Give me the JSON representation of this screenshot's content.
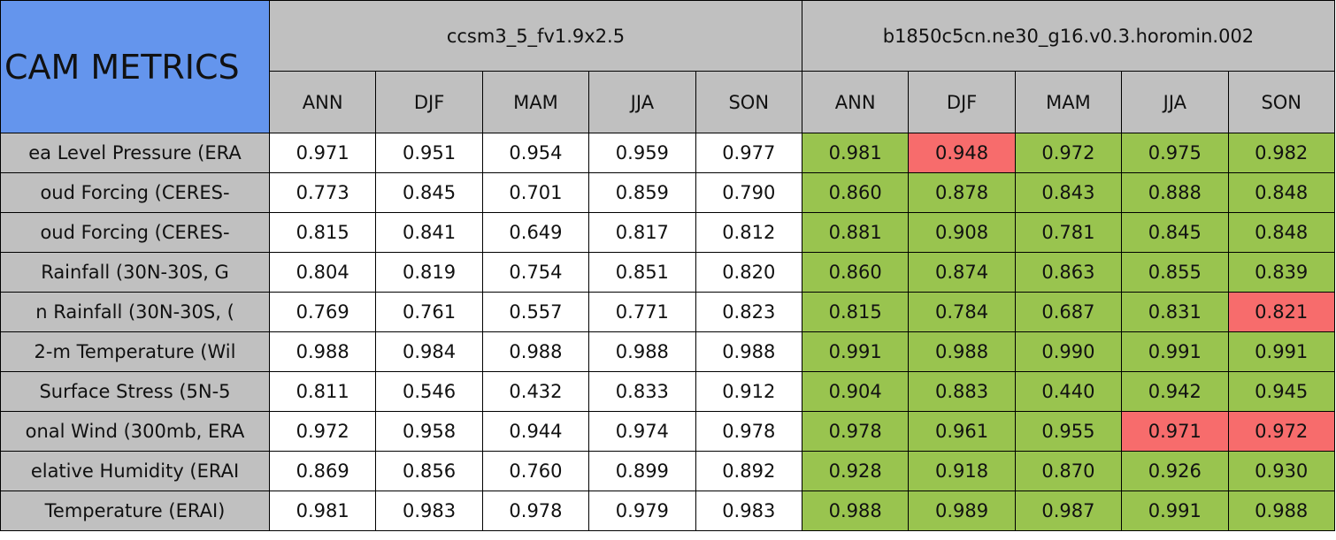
{
  "table": {
    "title": "CAM METRICS",
    "models": [
      {
        "name": "ccsm3_5_fv1.9x2.5",
        "seasons": [
          "ANN",
          "DJF",
          "MAM",
          "JJA",
          "SON"
        ]
      },
      {
        "name": "b1850c5cn.ne30_g16.v0.3.horomin.002",
        "seasons": [
          "ANN",
          "DJF",
          "MAM",
          "JJA",
          "SON"
        ]
      }
    ],
    "colors": {
      "header": "#c0c0c0",
      "title": "#6495ed",
      "label": "#c0c0c0",
      "plain": "#ffffff",
      "better": "#99c44f",
      "worse": "#f76c6c"
    },
    "rows": [
      {
        "label": "ea Level Pressure (ERA",
        "values": [
          "0.971",
          "0.951",
          "0.954",
          "0.959",
          "0.977",
          "0.981",
          "0.948",
          "0.972",
          "0.975",
          "0.982"
        ],
        "status": [
          "plain",
          "plain",
          "plain",
          "plain",
          "plain",
          "better",
          "worse",
          "better",
          "better",
          "better"
        ]
      },
      {
        "label": "oud Forcing (CERES-",
        "values": [
          "0.773",
          "0.845",
          "0.701",
          "0.859",
          "0.790",
          "0.860",
          "0.878",
          "0.843",
          "0.888",
          "0.848"
        ],
        "status": [
          "plain",
          "plain",
          "plain",
          "plain",
          "plain",
          "better",
          "better",
          "better",
          "better",
          "better"
        ]
      },
      {
        "label": "oud Forcing (CERES-",
        "values": [
          "0.815",
          "0.841",
          "0.649",
          "0.817",
          "0.812",
          "0.881",
          "0.908",
          "0.781",
          "0.845",
          "0.848"
        ],
        "status": [
          "plain",
          "plain",
          "plain",
          "plain",
          "plain",
          "better",
          "better",
          "better",
          "better",
          "better"
        ]
      },
      {
        "label": "Rainfall (30N-30S, G",
        "values": [
          "0.804",
          "0.819",
          "0.754",
          "0.851",
          "0.820",
          "0.860",
          "0.874",
          "0.863",
          "0.855",
          "0.839"
        ],
        "status": [
          "plain",
          "plain",
          "plain",
          "plain",
          "plain",
          "better",
          "better",
          "better",
          "better",
          "better"
        ]
      },
      {
        "label": "n Rainfall (30N-30S, (",
        "values": [
          "0.769",
          "0.761",
          "0.557",
          "0.771",
          "0.823",
          "0.815",
          "0.784",
          "0.687",
          "0.831",
          "0.821"
        ],
        "status": [
          "plain",
          "plain",
          "plain",
          "plain",
          "plain",
          "better",
          "better",
          "better",
          "better",
          "worse"
        ]
      },
      {
        "label": "2-m Temperature (Wil",
        "values": [
          "0.988",
          "0.984",
          "0.988",
          "0.988",
          "0.988",
          "0.991",
          "0.988",
          "0.990",
          "0.991",
          "0.991"
        ],
        "status": [
          "plain",
          "plain",
          "plain",
          "plain",
          "plain",
          "better",
          "better",
          "better",
          "better",
          "better"
        ]
      },
      {
        "label": "Surface Stress (5N-5",
        "values": [
          "0.811",
          "0.546",
          "0.432",
          "0.833",
          "0.912",
          "0.904",
          "0.883",
          "0.440",
          "0.942",
          "0.945"
        ],
        "status": [
          "plain",
          "plain",
          "plain",
          "plain",
          "plain",
          "better",
          "better",
          "better",
          "better",
          "better"
        ]
      },
      {
        "label": "onal Wind (300mb, ERA",
        "values": [
          "0.972",
          "0.958",
          "0.944",
          "0.974",
          "0.978",
          "0.978",
          "0.961",
          "0.955",
          "0.971",
          "0.972"
        ],
        "status": [
          "plain",
          "plain",
          "plain",
          "plain",
          "plain",
          "better",
          "better",
          "better",
          "worse",
          "worse"
        ]
      },
      {
        "label": "elative Humidity (ERAI",
        "values": [
          "0.869",
          "0.856",
          "0.760",
          "0.899",
          "0.892",
          "0.928",
          "0.918",
          "0.870",
          "0.926",
          "0.930"
        ],
        "status": [
          "plain",
          "plain",
          "plain",
          "plain",
          "plain",
          "better",
          "better",
          "better",
          "better",
          "better"
        ]
      },
      {
        "label": "Temperature (ERAI)",
        "values": [
          "0.981",
          "0.983",
          "0.978",
          "0.979",
          "0.983",
          "0.988",
          "0.989",
          "0.987",
          "0.991",
          "0.988"
        ],
        "status": [
          "plain",
          "plain",
          "plain",
          "plain",
          "plain",
          "better",
          "better",
          "better",
          "better",
          "better"
        ]
      }
    ]
  }
}
